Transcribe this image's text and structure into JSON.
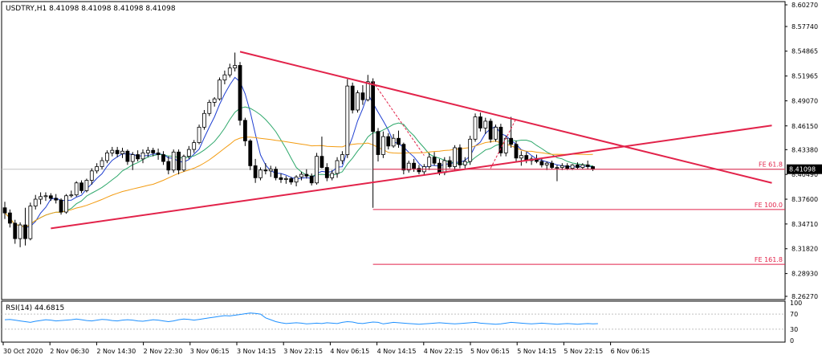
{
  "chart_data": {
    "type": "candlestick",
    "title": "USDTRY,H1  8.41098 8.41098 8.41098 8.41098",
    "current_price": "8.41098",
    "ylim": [
      8.2627,
      8.6027
    ],
    "y_ticks": [
      "8.60270",
      "8.57740",
      "8.54865",
      "8.51965",
      "8.49070",
      "8.46150",
      "8.43380",
      "8.40490",
      "8.37600",
      "8.34710",
      "8.31820",
      "8.28930",
      "8.26270"
    ],
    "x_ticks": [
      "30 Oct 2020",
      "2 Nov 06:30",
      "2 Nov 14:30",
      "2 Nov 22:30",
      "3 Nov 06:15",
      "3 Nov 14:15",
      "3 Nov 22:15",
      "4 Nov 06:15",
      "4 Nov 14:15",
      "4 Nov 22:15",
      "5 Nov 06:15",
      "5 Nov 14:15",
      "5 Nov 22:15",
      "6 Nov 06:15"
    ],
    "candles": [
      {
        "o": 8.366,
        "h": 8.373,
        "l": 8.353,
        "c": 8.36
      },
      {
        "o": 8.36,
        "h": 8.364,
        "l": 8.343,
        "c": 8.348
      },
      {
        "o": 8.348,
        "h": 8.352,
        "l": 8.324,
        "c": 8.33
      },
      {
        "o": 8.33,
        "h": 8.349,
        "l": 8.32,
        "c": 8.346
      },
      {
        "o": 8.346,
        "h": 8.366,
        "l": 8.322,
        "c": 8.33
      },
      {
        "o": 8.33,
        "h": 8.372,
        "l": 8.328,
        "c": 8.368
      },
      {
        "o": 8.368,
        "h": 8.381,
        "l": 8.364,
        "c": 8.376
      },
      {
        "o": 8.376,
        "h": 8.384,
        "l": 8.37,
        "c": 8.379
      },
      {
        "o": 8.379,
        "h": 8.384,
        "l": 8.374,
        "c": 8.38
      },
      {
        "o": 8.38,
        "h": 8.383,
        "l": 8.374,
        "c": 8.377
      },
      {
        "o": 8.377,
        "h": 8.382,
        "l": 8.371,
        "c": 8.375
      },
      {
        "o": 8.375,
        "h": 8.377,
        "l": 8.358,
        "c": 8.361
      },
      {
        "o": 8.361,
        "h": 8.382,
        "l": 8.359,
        "c": 8.38
      },
      {
        "o": 8.38,
        "h": 8.386,
        "l": 8.378,
        "c": 8.381
      },
      {
        "o": 8.381,
        "h": 8.397,
        "l": 8.379,
        "c": 8.395
      },
      {
        "o": 8.395,
        "h": 8.398,
        "l": 8.383,
        "c": 8.386
      },
      {
        "o": 8.386,
        "h": 8.4,
        "l": 8.384,
        "c": 8.398
      },
      {
        "o": 8.398,
        "h": 8.412,
        "l": 8.393,
        "c": 8.409
      },
      {
        "o": 8.409,
        "h": 8.418,
        "l": 8.406,
        "c": 8.414
      },
      {
        "o": 8.414,
        "h": 8.425,
        "l": 8.411,
        "c": 8.421
      },
      {
        "o": 8.421,
        "h": 8.433,
        "l": 8.418,
        "c": 8.43
      },
      {
        "o": 8.43,
        "h": 8.437,
        "l": 8.426,
        "c": 8.433
      },
      {
        "o": 8.433,
        "h": 8.437,
        "l": 8.425,
        "c": 8.429
      },
      {
        "o": 8.429,
        "h": 8.436,
        "l": 8.424,
        "c": 8.432
      },
      {
        "o": 8.432,
        "h": 8.434,
        "l": 8.416,
        "c": 8.42
      },
      {
        "o": 8.42,
        "h": 8.431,
        "l": 8.41,
        "c": 8.428
      },
      {
        "o": 8.428,
        "h": 8.433,
        "l": 8.42,
        "c": 8.423
      },
      {
        "o": 8.423,
        "h": 8.434,
        "l": 8.418,
        "c": 8.43
      },
      {
        "o": 8.43,
        "h": 8.437,
        "l": 8.425,
        "c": 8.433
      },
      {
        "o": 8.433,
        "h": 8.436,
        "l": 8.426,
        "c": 8.43
      },
      {
        "o": 8.43,
        "h": 8.435,
        "l": 8.422,
        "c": 8.428
      },
      {
        "o": 8.428,
        "h": 8.432,
        "l": 8.416,
        "c": 8.42
      },
      {
        "o": 8.42,
        "h": 8.426,
        "l": 8.405,
        "c": 8.41
      },
      {
        "o": 8.41,
        "h": 8.434,
        "l": 8.407,
        "c": 8.431
      },
      {
        "o": 8.431,
        "h": 8.434,
        "l": 8.405,
        "c": 8.41
      },
      {
        "o": 8.41,
        "h": 8.428,
        "l": 8.408,
        "c": 8.426
      },
      {
        "o": 8.426,
        "h": 8.438,
        "l": 8.423,
        "c": 8.434
      },
      {
        "o": 8.434,
        "h": 8.445,
        "l": 8.43,
        "c": 8.442
      },
      {
        "o": 8.442,
        "h": 8.463,
        "l": 8.44,
        "c": 8.46
      },
      {
        "o": 8.46,
        "h": 8.48,
        "l": 8.457,
        "c": 8.476
      },
      {
        "o": 8.476,
        "h": 8.492,
        "l": 8.473,
        "c": 8.489
      },
      {
        "o": 8.489,
        "h": 8.495,
        "l": 8.484,
        "c": 8.493
      },
      {
        "o": 8.493,
        "h": 8.518,
        "l": 8.491,
        "c": 8.515
      },
      {
        "o": 8.515,
        "h": 8.526,
        "l": 8.51,
        "c": 8.521
      },
      {
        "o": 8.521,
        "h": 8.534,
        "l": 8.518,
        "c": 8.529
      },
      {
        "o": 8.529,
        "h": 8.547,
        "l": 8.525,
        "c": 8.532
      },
      {
        "o": 8.532,
        "h": 8.536,
        "l": 8.462,
        "c": 8.468
      },
      {
        "o": 8.468,
        "h": 8.471,
        "l": 8.438,
        "c": 8.444
      },
      {
        "o": 8.444,
        "h": 8.446,
        "l": 8.41,
        "c": 8.415
      },
      {
        "o": 8.415,
        "h": 8.423,
        "l": 8.395,
        "c": 8.401
      },
      {
        "o": 8.401,
        "h": 8.413,
        "l": 8.398,
        "c": 8.41
      },
      {
        "o": 8.41,
        "h": 8.418,
        "l": 8.405,
        "c": 8.409
      },
      {
        "o": 8.409,
        "h": 8.415,
        "l": 8.402,
        "c": 8.411
      },
      {
        "o": 8.411,
        "h": 8.414,
        "l": 8.398,
        "c": 8.401
      },
      {
        "o": 8.401,
        "h": 8.406,
        "l": 8.395,
        "c": 8.399
      },
      {
        "o": 8.399,
        "h": 8.403,
        "l": 8.394,
        "c": 8.4
      },
      {
        "o": 8.4,
        "h": 8.402,
        "l": 8.393,
        "c": 8.396
      },
      {
        "o": 8.396,
        "h": 8.404,
        "l": 8.391,
        "c": 8.402
      },
      {
        "o": 8.402,
        "h": 8.408,
        "l": 8.398,
        "c": 8.405
      },
      {
        "o": 8.405,
        "h": 8.411,
        "l": 8.4,
        "c": 8.403
      },
      {
        "o": 8.403,
        "h": 8.406,
        "l": 8.392,
        "c": 8.395
      },
      {
        "o": 8.395,
        "h": 8.43,
        "l": 8.393,
        "c": 8.426
      },
      {
        "o": 8.426,
        "h": 8.449,
        "l": 8.412,
        "c": 8.413
      },
      {
        "o": 8.413,
        "h": 8.418,
        "l": 8.397,
        "c": 8.401
      },
      {
        "o": 8.401,
        "h": 8.41,
        "l": 8.398,
        "c": 8.406
      },
      {
        "o": 8.406,
        "h": 8.425,
        "l": 8.401,
        "c": 8.421
      },
      {
        "o": 8.421,
        "h": 8.432,
        "l": 8.417,
        "c": 8.428
      },
      {
        "o": 8.428,
        "h": 8.516,
        "l": 8.424,
        "c": 8.508
      },
      {
        "o": 8.508,
        "h": 8.512,
        "l": 8.476,
        "c": 8.48
      },
      {
        "o": 8.48,
        "h": 8.503,
        "l": 8.477,
        "c": 8.5
      },
      {
        "o": 8.5,
        "h": 8.509,
        "l": 8.486,
        "c": 8.492
      },
      {
        "o": 8.492,
        "h": 8.521,
        "l": 8.49,
        "c": 8.513
      },
      {
        "o": 8.513,
        "h": 8.517,
        "l": 8.366,
        "c": 8.455
      },
      {
        "o": 8.455,
        "h": 8.459,
        "l": 8.42,
        "c": 8.428
      },
      {
        "o": 8.428,
        "h": 8.455,
        "l": 8.424,
        "c": 8.449
      },
      {
        "o": 8.449,
        "h": 8.453,
        "l": 8.434,
        "c": 8.438
      },
      {
        "o": 8.438,
        "h": 8.452,
        "l": 8.436,
        "c": 8.447
      },
      {
        "o": 8.447,
        "h": 8.456,
        "l": 8.436,
        "c": 8.44
      },
      {
        "o": 8.44,
        "h": 8.442,
        "l": 8.405,
        "c": 8.41
      },
      {
        "o": 8.41,
        "h": 8.421,
        "l": 8.407,
        "c": 8.418
      },
      {
        "o": 8.418,
        "h": 8.423,
        "l": 8.408,
        "c": 8.412
      },
      {
        "o": 8.412,
        "h": 8.416,
        "l": 8.405,
        "c": 8.408
      },
      {
        "o": 8.408,
        "h": 8.417,
        "l": 8.405,
        "c": 8.414
      },
      {
        "o": 8.414,
        "h": 8.43,
        "l": 8.41,
        "c": 8.425
      },
      {
        "o": 8.425,
        "h": 8.431,
        "l": 8.415,
        "c": 8.418
      },
      {
        "o": 8.418,
        "h": 8.423,
        "l": 8.404,
        "c": 8.407
      },
      {
        "o": 8.407,
        "h": 8.425,
        "l": 8.404,
        "c": 8.421
      },
      {
        "o": 8.421,
        "h": 8.426,
        "l": 8.412,
        "c": 8.414
      },
      {
        "o": 8.414,
        "h": 8.439,
        "l": 8.41,
        "c": 8.436
      },
      {
        "o": 8.436,
        "h": 8.44,
        "l": 8.412,
        "c": 8.416
      },
      {
        "o": 8.416,
        "h": 8.425,
        "l": 8.412,
        "c": 8.42
      },
      {
        "o": 8.42,
        "h": 8.45,
        "l": 8.416,
        "c": 8.446
      },
      {
        "o": 8.446,
        "h": 8.476,
        "l": 8.443,
        "c": 8.472
      },
      {
        "o": 8.472,
        "h": 8.477,
        "l": 8.455,
        "c": 8.459
      },
      {
        "o": 8.459,
        "h": 8.471,
        "l": 8.452,
        "c": 8.467
      },
      {
        "o": 8.467,
        "h": 8.47,
        "l": 8.442,
        "c": 8.446
      },
      {
        "o": 8.446,
        "h": 8.463,
        "l": 8.443,
        "c": 8.46
      },
      {
        "o": 8.46,
        "h": 8.464,
        "l": 8.426,
        "c": 8.43
      },
      {
        "o": 8.43,
        "h": 8.45,
        "l": 8.426,
        "c": 8.447
      },
      {
        "o": 8.447,
        "h": 8.472,
        "l": 8.436,
        "c": 8.44
      },
      {
        "o": 8.44,
        "h": 8.444,
        "l": 8.42,
        "c": 8.424
      },
      {
        "o": 8.424,
        "h": 8.432,
        "l": 8.415,
        "c": 8.427
      },
      {
        "o": 8.427,
        "h": 8.431,
        "l": 8.418,
        "c": 8.421
      },
      {
        "o": 8.421,
        "h": 8.426,
        "l": 8.416,
        "c": 8.423
      },
      {
        "o": 8.423,
        "h": 8.428,
        "l": 8.418,
        "c": 8.42
      },
      {
        "o": 8.42,
        "h": 8.424,
        "l": 8.413,
        "c": 8.416
      },
      {
        "o": 8.416,
        "h": 8.42,
        "l": 8.41,
        "c": 8.418
      },
      {
        "o": 8.418,
        "h": 8.421,
        "l": 8.411,
        "c": 8.413
      },
      {
        "o": 8.413,
        "h": 8.416,
        "l": 8.397,
        "c": 8.413
      },
      {
        "o": 8.413,
        "h": 8.418,
        "l": 8.41,
        "c": 8.415
      },
      {
        "o": 8.415,
        "h": 8.418,
        "l": 8.41,
        "c": 8.412
      },
      {
        "o": 8.412,
        "h": 8.417,
        "l": 8.41,
        "c": 8.416
      },
      {
        "o": 8.416,
        "h": 8.419,
        "l": 8.411,
        "c": 8.413
      },
      {
        "o": 8.413,
        "h": 8.418,
        "l": 8.411,
        "c": 8.416
      },
      {
        "o": 8.416,
        "h": 8.421,
        "l": 8.411,
        "c": 8.414
      },
      {
        "o": 8.414,
        "h": 8.415,
        "l": 8.409,
        "c": 8.411
      }
    ],
    "lines": [
      {
        "name": "trend-top",
        "color": "#e2234a",
        "p1": {
          "i": 46,
          "y": 8.548
        },
        "p2": {
          "i": 150,
          "y": 8.395
        }
      },
      {
        "name": "trend-bottom",
        "color": "#e2234a",
        "p1": {
          "i": 9,
          "y": 8.342
        },
        "p2": {
          "i": 150,
          "y": 8.462
        }
      }
    ],
    "fib_levels": [
      {
        "label": "FE 61.8",
        "y": 8.41098
      },
      {
        "label": "FE 100.0",
        "y": 8.364
      },
      {
        "label": "FE 161.8",
        "y": 8.3
      }
    ],
    "fib_start_index": 72,
    "rsi": {
      "label": "RSI(14) 44.6815",
      "ticks": [
        "100",
        "70",
        "30",
        "0"
      ],
      "levels": [
        70,
        30
      ],
      "values": [
        55,
        56,
        54,
        52,
        50,
        48,
        51,
        53,
        55,
        54,
        52,
        53,
        54,
        55,
        57,
        55,
        53,
        52,
        54,
        56,
        55,
        53,
        52,
        54,
        55,
        54,
        52,
        51,
        53,
        55,
        54,
        52,
        50,
        52,
        55,
        57,
        56,
        54,
        56,
        58,
        60,
        62,
        64,
        66,
        65,
        67,
        69,
        71,
        73,
        72,
        70,
        60,
        55,
        50,
        47,
        45,
        46,
        47,
        46,
        44,
        45,
        46,
        45,
        47,
        46,
        45,
        48,
        50,
        49,
        46,
        45,
        47,
        49,
        48,
        44,
        46,
        48,
        47,
        46,
        45,
        44,
        43,
        44,
        45,
        46,
        47,
        46,
        45,
        44,
        45,
        46,
        47,
        48,
        46,
        45,
        44,
        43,
        44,
        46,
        48,
        47,
        46,
        45,
        44,
        45,
        46,
        45,
        44,
        43,
        44,
        45,
        44,
        43,
        44,
        45,
        44,
        44.7
      ]
    },
    "colors": {
      "bull": "#000000",
      "bear": "#000000",
      "ma_fast": "#1f3fd1",
      "ma_mid": "#2ea86b",
      "ma_slow": "#f39c12",
      "fib": "#e2234a"
    }
  }
}
